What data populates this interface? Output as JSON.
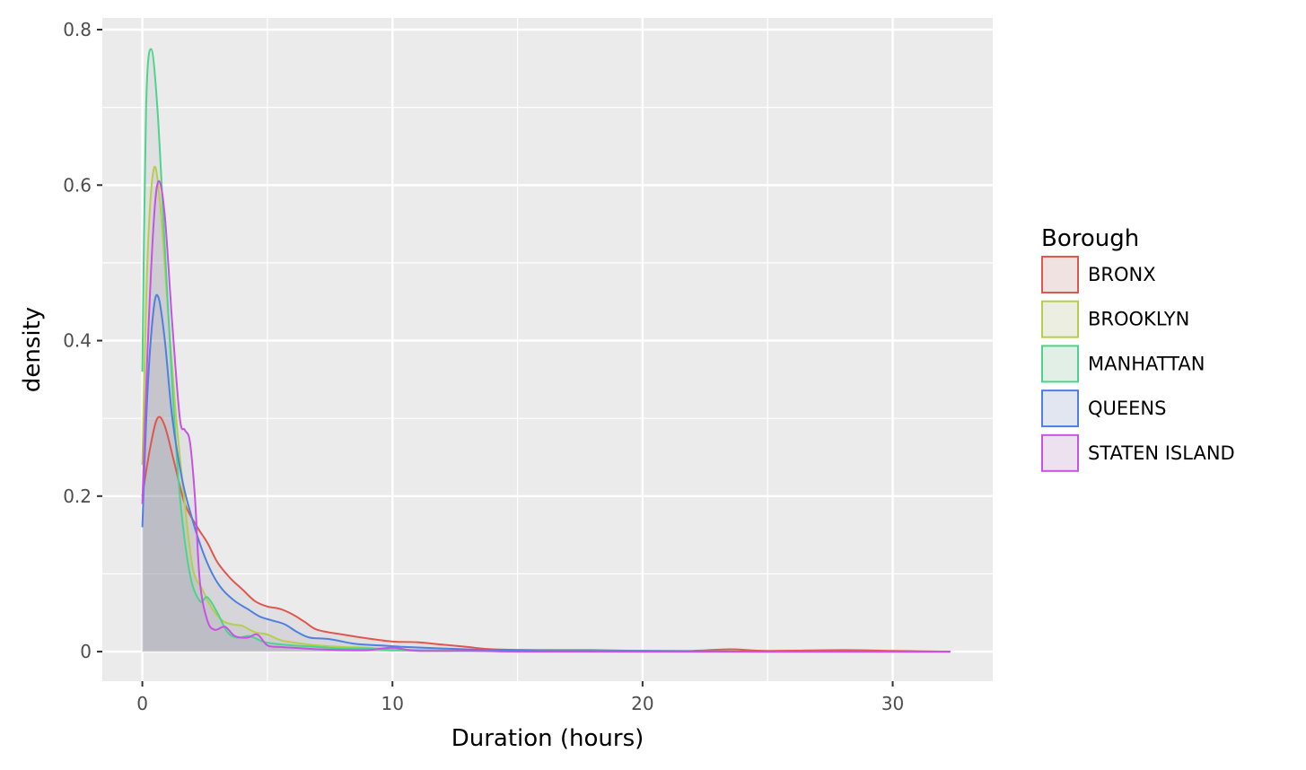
{
  "chart_data": {
    "type": "area",
    "subtype": "density",
    "title": "",
    "xlabel": "Duration (hours)",
    "ylabel": "density",
    "xlim": [
      -1.6,
      34.0
    ],
    "ylim": [
      -0.038,
      0.815
    ],
    "x_ticks": [
      0,
      10,
      20,
      30
    ],
    "x_tick_labels": [
      "0",
      "10",
      "20",
      "30"
    ],
    "y_ticks": [
      0,
      0.2,
      0.4,
      0.6,
      0.8
    ],
    "y_tick_labels": [
      "0",
      "0.2",
      "0.4",
      "0.6",
      "0.8"
    ],
    "grid": true,
    "legend_title": "Borough",
    "legend_position": "right",
    "fill_alpha": 0.1,
    "series": [
      {
        "name": "BRONX",
        "color": "#e0574f",
        "points": [
          [
            0,
            0.2
          ],
          [
            0.3,
            0.26
          ],
          [
            0.6,
            0.3
          ],
          [
            0.9,
            0.29
          ],
          [
            1.3,
            0.24
          ],
          [
            1.7,
            0.19
          ],
          [
            2.2,
            0.16
          ],
          [
            2.6,
            0.14
          ],
          [
            3,
            0.115
          ],
          [
            3.5,
            0.095
          ],
          [
            4,
            0.08
          ],
          [
            4.5,
            0.065
          ],
          [
            5,
            0.058
          ],
          [
            5.5,
            0.055
          ],
          [
            6,
            0.048
          ],
          [
            6.5,
            0.038
          ],
          [
            7,
            0.028
          ],
          [
            8,
            0.022
          ],
          [
            9,
            0.017
          ],
          [
            10,
            0.013
          ],
          [
            11,
            0.012
          ],
          [
            12,
            0.009
          ],
          [
            13,
            0.006
          ],
          [
            14,
            0.003
          ],
          [
            16,
            0.002
          ],
          [
            18,
            0.002
          ],
          [
            20,
            0.001
          ],
          [
            22,
            0.001
          ],
          [
            23.5,
            0.003
          ],
          [
            25,
            0.001
          ],
          [
            28,
            0.002
          ],
          [
            30,
            0.001
          ],
          [
            32.3,
            0.0
          ]
        ]
      },
      {
        "name": "BROOKLYN",
        "color": "#b5cf4a",
        "points": [
          [
            0,
            0.24
          ],
          [
            0.2,
            0.5
          ],
          [
            0.45,
            0.62
          ],
          [
            0.7,
            0.58
          ],
          [
            1,
            0.45
          ],
          [
            1.3,
            0.32
          ],
          [
            1.6,
            0.22
          ],
          [
            2,
            0.11
          ],
          [
            2.4,
            0.08
          ],
          [
            2.8,
            0.055
          ],
          [
            3.2,
            0.04
          ],
          [
            3.6,
            0.035
          ],
          [
            4,
            0.033
          ],
          [
            4.5,
            0.025
          ],
          [
            5,
            0.022
          ],
          [
            5.5,
            0.015
          ],
          [
            6,
            0.012
          ],
          [
            7,
            0.008
          ],
          [
            8,
            0.006
          ],
          [
            9,
            0.005
          ],
          [
            10,
            0.003
          ],
          [
            12,
            0.002
          ],
          [
            15,
            0.001
          ],
          [
            20,
            0.001
          ],
          [
            25,
            0.0
          ],
          [
            30,
            0.0
          ],
          [
            32.3,
            0.0
          ]
        ]
      },
      {
        "name": "MANHATTAN",
        "color": "#4cd48c",
        "points": [
          [
            0,
            0.36
          ],
          [
            0.15,
            0.7
          ],
          [
            0.35,
            0.775
          ],
          [
            0.6,
            0.7
          ],
          [
            0.9,
            0.52
          ],
          [
            1.2,
            0.34
          ],
          [
            1.5,
            0.2
          ],
          [
            1.9,
            0.1
          ],
          [
            2.3,
            0.065
          ],
          [
            2.6,
            0.07
          ],
          [
            3,
            0.05
          ],
          [
            3.4,
            0.025
          ],
          [
            3.8,
            0.018
          ],
          [
            4.3,
            0.02
          ],
          [
            4.8,
            0.013
          ],
          [
            5.3,
            0.01
          ],
          [
            6,
            0.008
          ],
          [
            7,
            0.006
          ],
          [
            8,
            0.004
          ],
          [
            9,
            0.004
          ],
          [
            10,
            0.002
          ],
          [
            12,
            0.001
          ],
          [
            15,
            0.001
          ],
          [
            20,
            0.0
          ],
          [
            25,
            0.0
          ],
          [
            30,
            0.0
          ],
          [
            32.3,
            0.0
          ]
        ]
      },
      {
        "name": "QUEENS",
        "color": "#4f7fe0",
        "points": [
          [
            0,
            0.16
          ],
          [
            0.2,
            0.33
          ],
          [
            0.45,
            0.44
          ],
          [
            0.65,
            0.455
          ],
          [
            0.9,
            0.4
          ],
          [
            1.2,
            0.3
          ],
          [
            1.6,
            0.22
          ],
          [
            2,
            0.17
          ],
          [
            2.4,
            0.13
          ],
          [
            2.8,
            0.1
          ],
          [
            3.2,
            0.08
          ],
          [
            3.7,
            0.065
          ],
          [
            4.2,
            0.055
          ],
          [
            4.7,
            0.045
          ],
          [
            5.2,
            0.04
          ],
          [
            5.7,
            0.035
          ],
          [
            6.2,
            0.025
          ],
          [
            6.7,
            0.018
          ],
          [
            7.5,
            0.016
          ],
          [
            8.5,
            0.01
          ],
          [
            9.5,
            0.008
          ],
          [
            10.5,
            0.006
          ],
          [
            12,
            0.004
          ],
          [
            14,
            0.002
          ],
          [
            16,
            0.001
          ],
          [
            20,
            0.001
          ],
          [
            25,
            0.0
          ],
          [
            30,
            0.0
          ],
          [
            32.3,
            0.0
          ]
        ]
      },
      {
        "name": "STATEN ISLAND",
        "color": "#c752e3",
        "points": [
          [
            0,
            0.19
          ],
          [
            0.2,
            0.38
          ],
          [
            0.45,
            0.55
          ],
          [
            0.65,
            0.605
          ],
          [
            0.9,
            0.56
          ],
          [
            1.2,
            0.42
          ],
          [
            1.5,
            0.3
          ],
          [
            1.7,
            0.285
          ],
          [
            1.9,
            0.27
          ],
          [
            2.1,
            0.2
          ],
          [
            2.3,
            0.09
          ],
          [
            2.6,
            0.04
          ],
          [
            2.9,
            0.028
          ],
          [
            3.3,
            0.032
          ],
          [
            3.7,
            0.02
          ],
          [
            4.2,
            0.018
          ],
          [
            4.6,
            0.022
          ],
          [
            5,
            0.008
          ],
          [
            5.5,
            0.006
          ],
          [
            6,
            0.005
          ],
          [
            6.5,
            0.004
          ],
          [
            7,
            0.003
          ],
          [
            8,
            0.002
          ],
          [
            9,
            0.002
          ],
          [
            10,
            0.005
          ],
          [
            11,
            0.001
          ],
          [
            13,
            0.001
          ],
          [
            15,
            0.0
          ],
          [
            20,
            0.0
          ],
          [
            25,
            0.0
          ],
          [
            30,
            0.0
          ],
          [
            32.3,
            0.0
          ]
        ]
      }
    ]
  }
}
